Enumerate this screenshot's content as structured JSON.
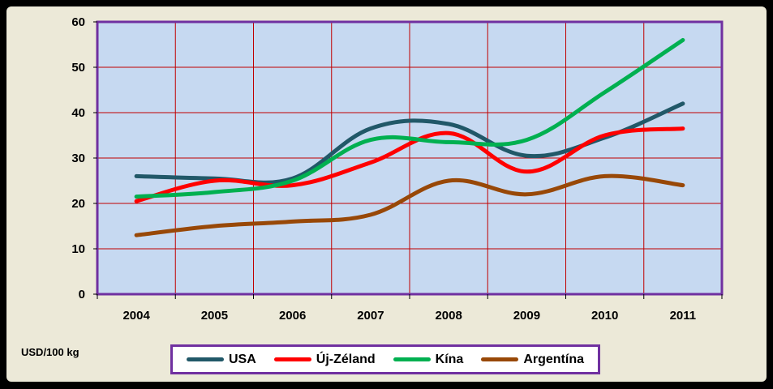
{
  "chart_data": {
    "type": "line",
    "categories": [
      "2004",
      "2005",
      "2006",
      "2007",
      "2008",
      "2009",
      "2010",
      "2011"
    ],
    "ylim": [
      0,
      60
    ],
    "yticks": [
      0,
      10,
      20,
      30,
      40,
      50,
      60
    ],
    "ylabel": "USD/100 kg",
    "grid": true,
    "legend_position": "bottom",
    "series": [
      {
        "name": "USA",
        "color": "#215868",
        "values": [
          26,
          25.5,
          25.5,
          36.5,
          37.5,
          30.5,
          34.5,
          42
        ]
      },
      {
        "name": "Új-Zéland",
        "color": "#ff0000",
        "values": [
          20.5,
          25,
          24,
          29,
          35.5,
          27,
          35,
          36.5
        ]
      },
      {
        "name": "Kína",
        "color": "#00b050",
        "values": [
          21.5,
          22.5,
          25,
          34,
          33.5,
          34,
          44.5,
          56
        ]
      },
      {
        "name": "Argentína",
        "color": "#984807",
        "values": [
          13,
          15,
          16,
          17.5,
          25,
          22,
          26,
          24
        ]
      }
    ],
    "colors": {
      "plot_background": "#c6d9f1",
      "grid": "#c00000",
      "plot_border": "#7030a0",
      "frame": "#ece9d8",
      "outer": "#000000"
    }
  }
}
